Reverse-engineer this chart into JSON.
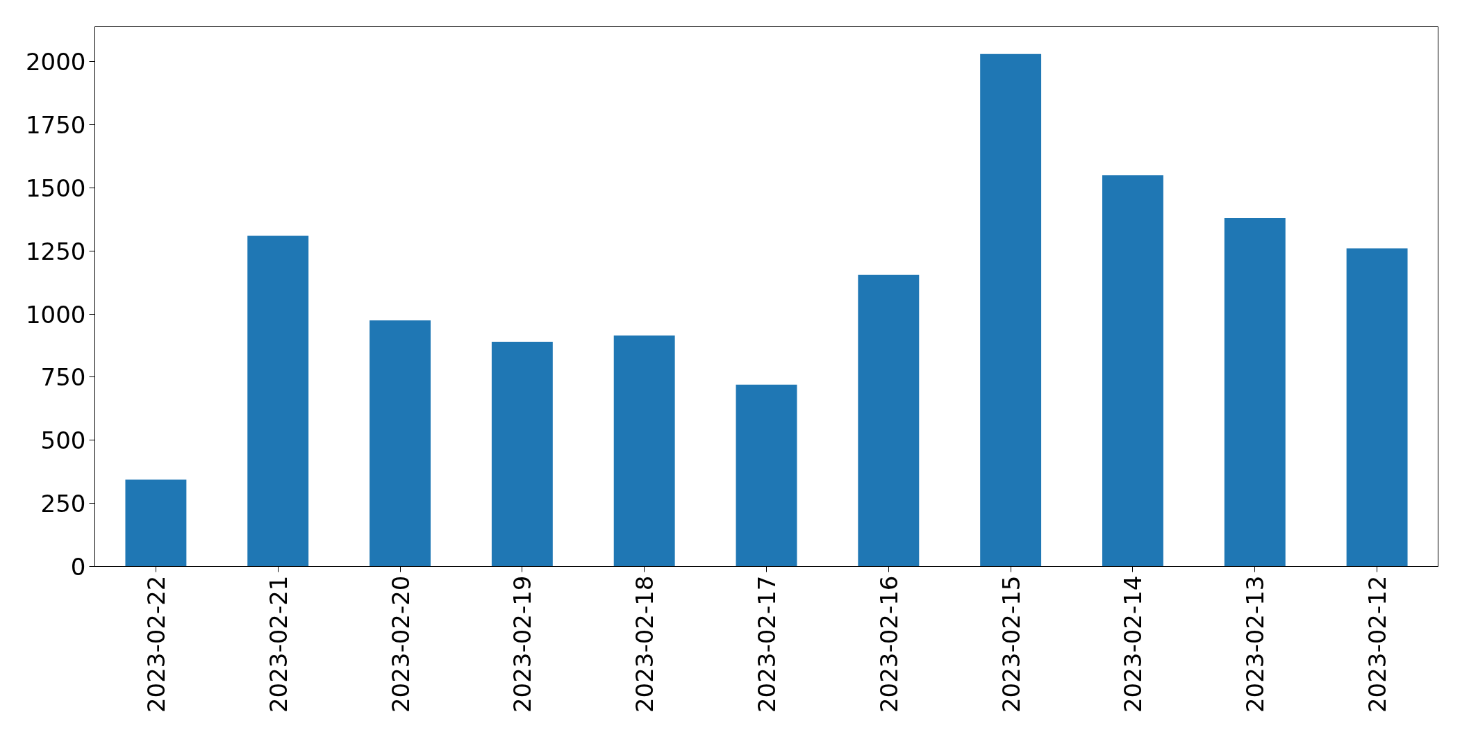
{
  "chart_data": {
    "type": "bar",
    "categories": [
      "2023-02-22",
      "2023-02-21",
      "2023-02-20",
      "2023-02-19",
      "2023-02-18",
      "2023-02-17",
      "2023-02-16",
      "2023-02-15",
      "2023-02-14",
      "2023-02-13",
      "2023-02-12"
    ],
    "values": [
      344,
      1310,
      975,
      890,
      915,
      720,
      1155,
      2030,
      1550,
      1380,
      1260
    ],
    "color": "#1f77b4",
    "ylim": [
      0,
      2138
    ],
    "yticks": [
      0,
      250,
      500,
      750,
      1000,
      1250,
      1500,
      1750,
      2000
    ],
    "grid": false
  }
}
